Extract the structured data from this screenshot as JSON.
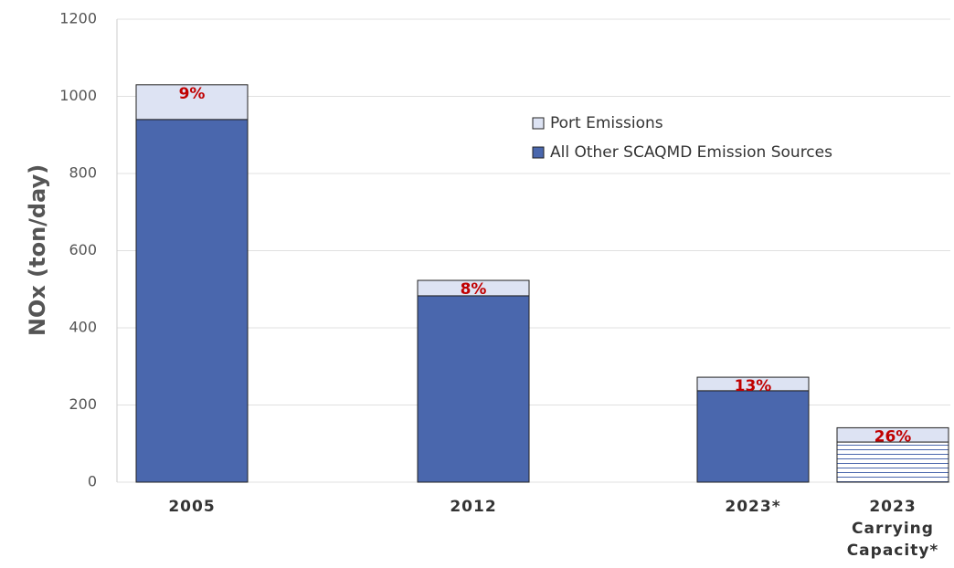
{
  "chart_data": {
    "type": "stacked-bar",
    "y_label": "NOx (ton/day)",
    "categories": [
      "2005",
      "2012",
      "2023*",
      "2023 Carrying Capacity*"
    ],
    "series": [
      {
        "name": "All Other SCAQMD Emission Sources",
        "color": "#4a67ad",
        "values": [
          940,
          483,
          237,
          104
        ]
      },
      {
        "name": "Port Emissions",
        "color": "#dde3f3",
        "values": [
          90,
          40,
          35,
          37
        ]
      }
    ],
    "annotations": [
      "9%",
      "8%",
      "13%",
      "26%"
    ],
    "ylim": [
      0,
      1200
    ],
    "yticks": [
      0,
      200,
      400,
      600,
      800,
      1000,
      1200
    ],
    "grid": true
  }
}
